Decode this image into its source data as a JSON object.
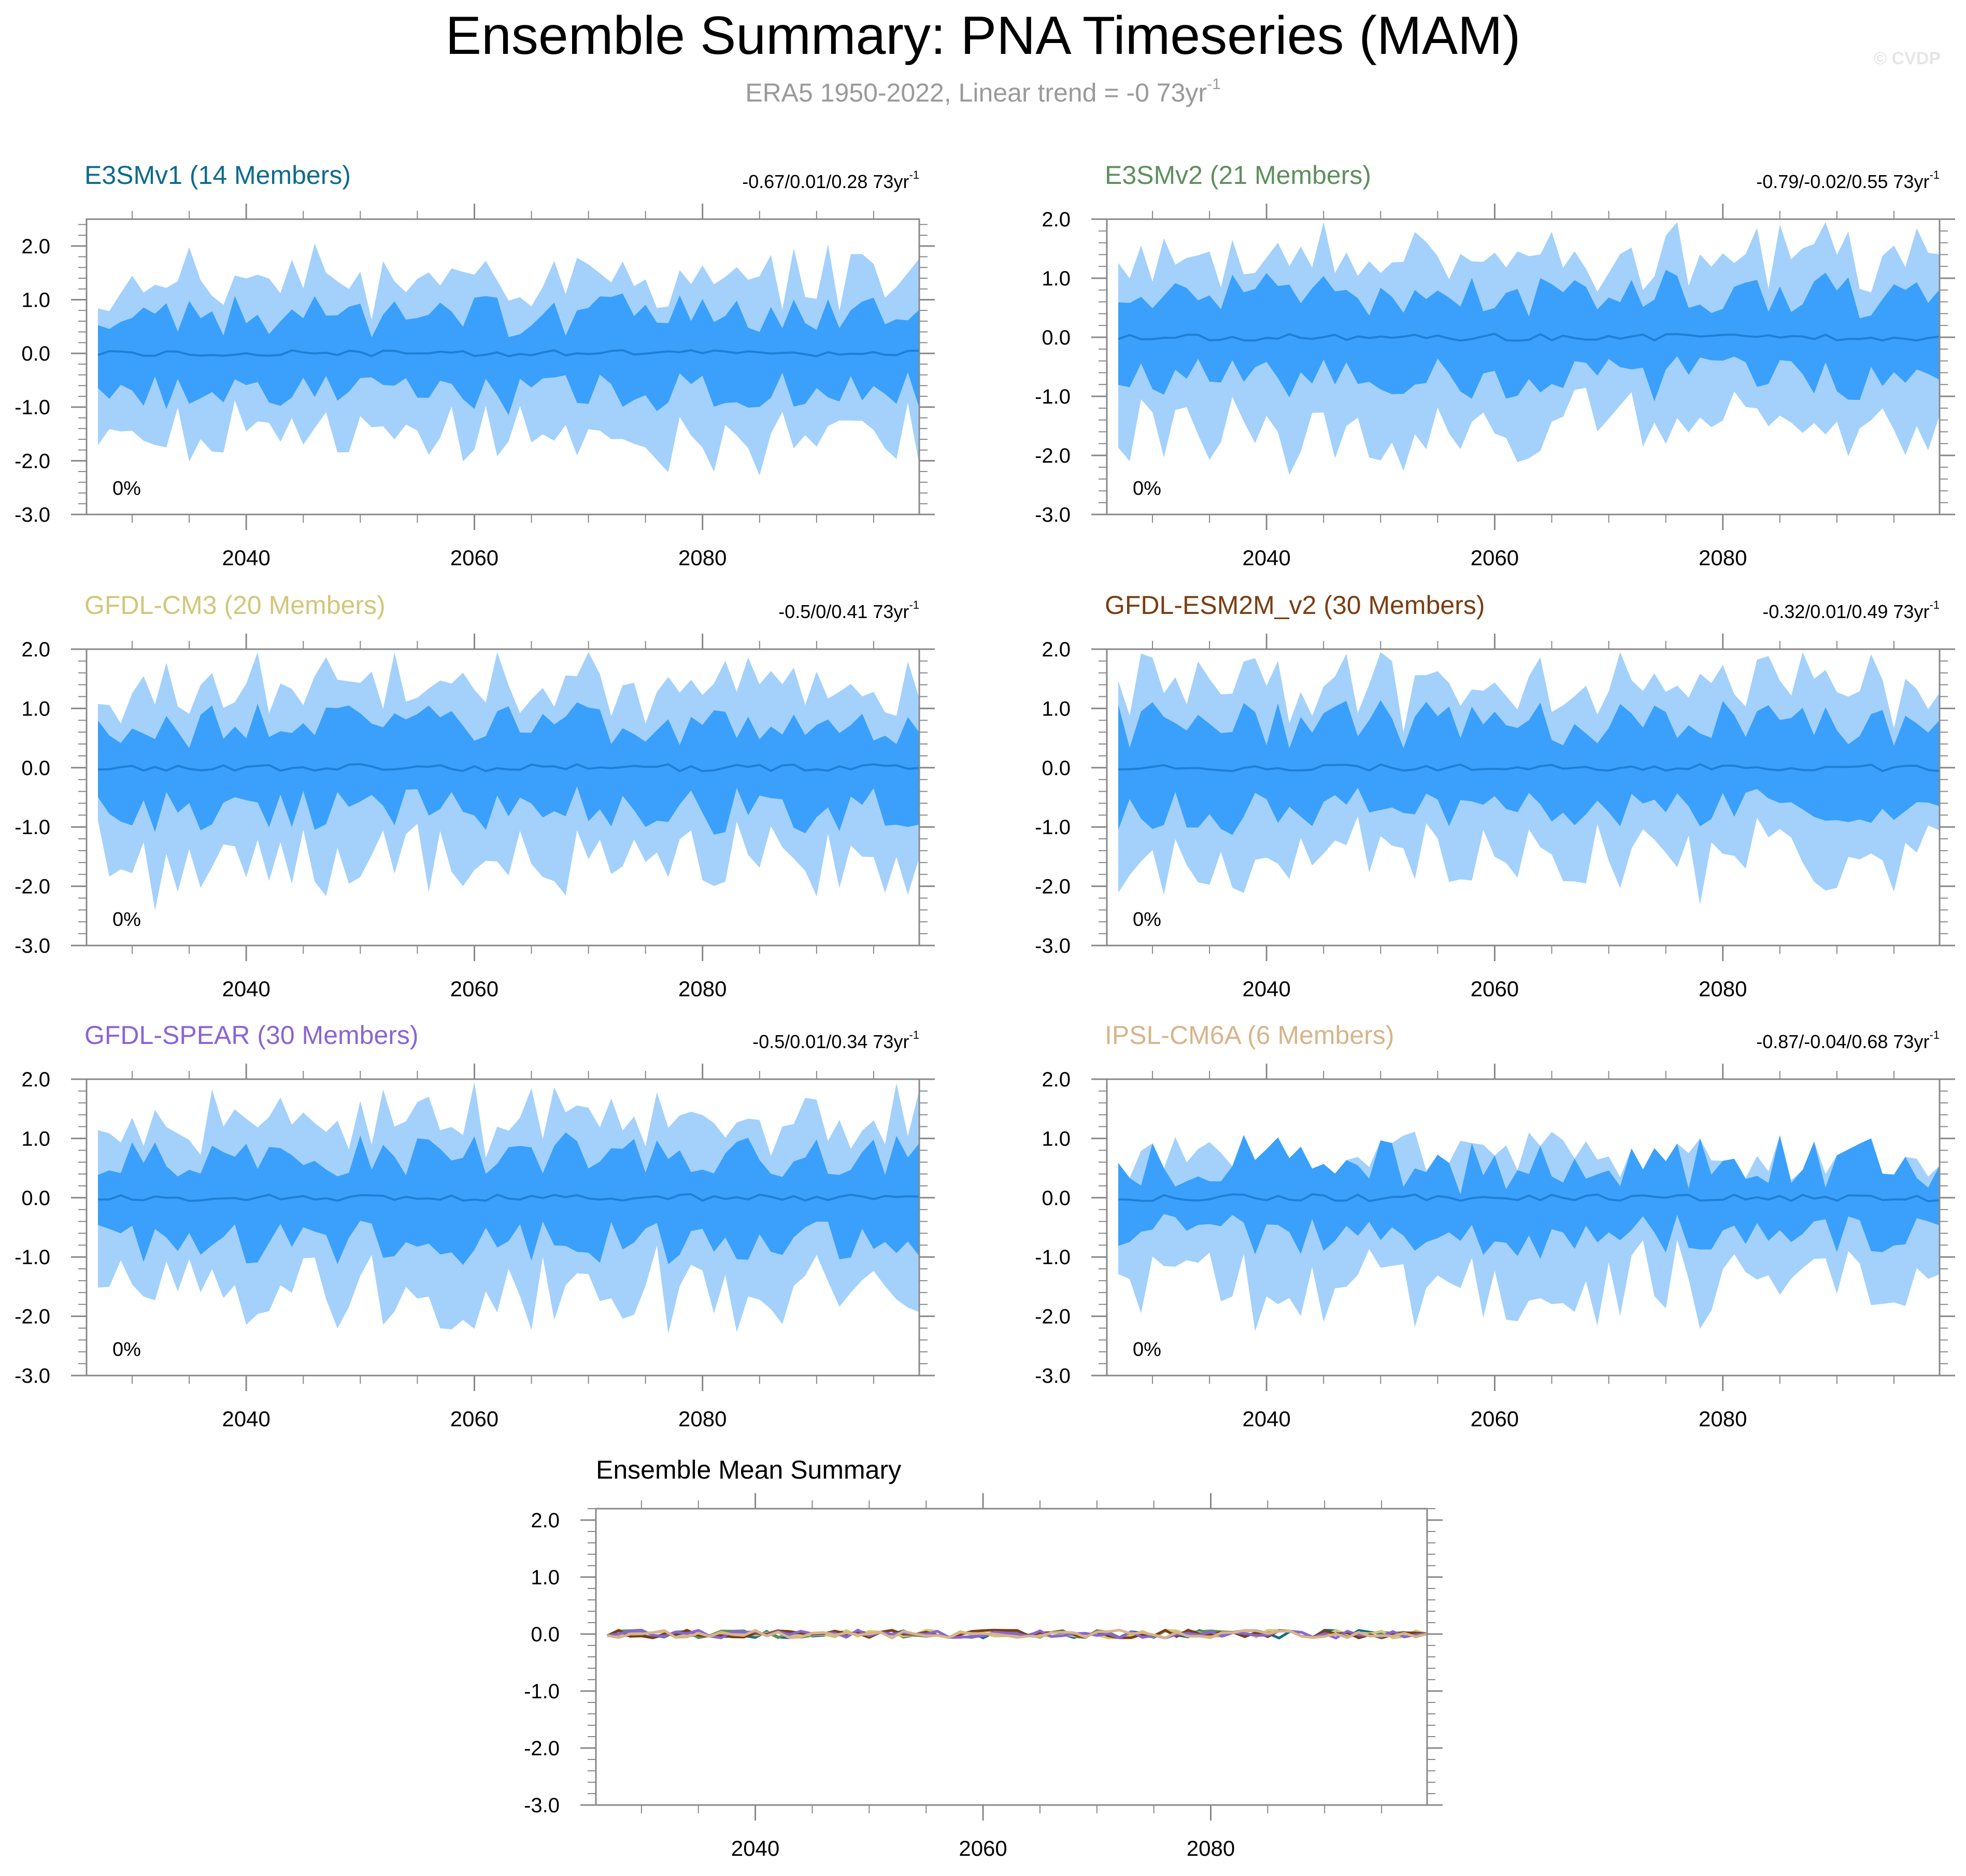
{
  "title": "Ensemble Summary: PNA Timeseries (MAM)",
  "subtitle": "ERA5 1950-2022, Linear trend = -0 73yr",
  "subtitle_sup": "-1",
  "watermark": "© CVDP",
  "trend_sup": "-1",
  "percent_label": "0%",
  "colors": {
    "outer_band": "#a3d1fc",
    "inner_band": "#3aa0fb",
    "mean_line": "#1f7fd6",
    "frame": "#888888",
    "tick_label": "#000000"
  },
  "axes": {
    "x_range": [
      2026,
      2099
    ],
    "y_range": [
      -3.0,
      2.5
    ],
    "x_ticks": [
      2040,
      2060,
      2080
    ],
    "y_ticks": [
      2.0,
      1.0,
      0.0,
      -1.0,
      -2.0,
      -3.0
    ],
    "x_tick_labels": [
      "2040",
      "2060",
      "2080"
    ],
    "y_tick_labels": [
      "2.0",
      "1.0",
      "0.0",
      "-1.0",
      "-2.0",
      "-3.0"
    ]
  },
  "chart_data": [
    {
      "type": "area",
      "title": "E3SMv1 (14 Members)",
      "title_color": "#0d6b8c",
      "trend_text": "-0.67/0.01/0.28 73yr",
      "seed": 11,
      "xlim": [
        2026,
        2099
      ],
      "ylim": [
        -3.0,
        2.5
      ],
      "series": [
        "max",
        "p90",
        "ensemble mean",
        "p10",
        "min"
      ]
    },
    {
      "type": "area",
      "title": "E3SMv2 (21 Members)",
      "title_color": "#5e8f5e",
      "trend_text": "-0.79/-0.02/0.55 73yr",
      "seed": 23,
      "xlim": [
        2026,
        2099
      ],
      "ylim": [
        -3.0,
        2.0
      ],
      "series": [
        "max",
        "p90",
        "ensemble mean",
        "p10",
        "min"
      ]
    },
    {
      "type": "area",
      "title": "GFDL-CM3 (20 Members)",
      "title_color": "#d2c77a",
      "trend_text": "-0.5/0/0.41 73yr",
      "seed": 37,
      "xlim": [
        2026,
        2099
      ],
      "ylim": [
        -3.0,
        2.0
      ],
      "series": [
        "max",
        "p90",
        "ensemble mean",
        "p10",
        "min"
      ]
    },
    {
      "type": "area",
      "title": "GFDL-ESM2M_v2 (30 Members)",
      "title_color": "#7a3e12",
      "trend_text": "-0.32/0.01/0.49 73yr",
      "seed": 41,
      "xlim": [
        2026,
        2099
      ],
      "ylim": [
        -3.0,
        2.0
      ],
      "series": [
        "max",
        "p90",
        "ensemble mean",
        "p10",
        "min"
      ]
    },
    {
      "type": "area",
      "title": "GFDL-SPEAR (30 Members)",
      "title_color": "#8a64d6",
      "trend_text": "-0.5/0.01/0.34 73yr",
      "seed": 53,
      "xlim": [
        2026,
        2099
      ],
      "ylim": [
        -3.0,
        2.0
      ],
      "series": [
        "max",
        "p90",
        "ensemble mean",
        "p10",
        "min"
      ]
    },
    {
      "type": "area",
      "title": "IPSL-CM6A (6 Members)",
      "title_color": "#d8b48a",
      "trend_text": "-0.87/-0.04/0.68 73yr",
      "seed": 67,
      "xlim": [
        2026,
        2099
      ],
      "ylim": [
        -3.0,
        2.0
      ],
      "series": [
        "max",
        "p90",
        "ensemble mean",
        "p10",
        "min"
      ]
    },
    {
      "type": "line",
      "title": "Ensemble Mean Summary",
      "xlim": [
        2026,
        2099
      ],
      "ylim": [
        -3.0,
        2.2
      ],
      "series": [
        {
          "name": "E3SMv1",
          "color": "#0d6b8c"
        },
        {
          "name": "E3SMv2",
          "color": "#5e8f5e"
        },
        {
          "name": "GFDL-CM3",
          "color": "#d2c77a"
        },
        {
          "name": "GFDL-ESM2M_v2",
          "color": "#7a3e12"
        },
        {
          "name": "GFDL-SPEAR",
          "color": "#8a64d6"
        },
        {
          "name": "IPSL-CM6A",
          "color": "#d8b48a"
        }
      ]
    }
  ]
}
